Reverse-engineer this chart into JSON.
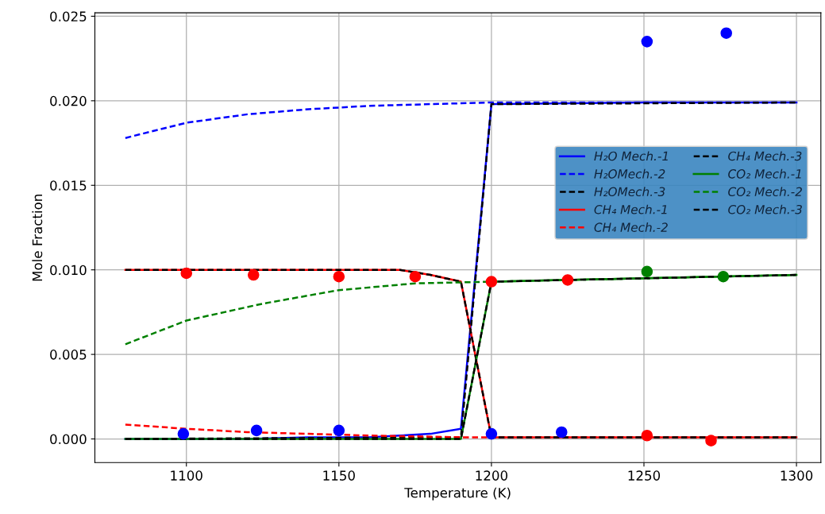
{
  "chart_data": {
    "type": "line",
    "xlabel": "Temperature (K)",
    "ylabel": "Mole Fraction",
    "xlim": [
      1070,
      1308
    ],
    "ylim": [
      -0.0014,
      0.0252
    ],
    "xticks": [
      1100,
      1150,
      1200,
      1250,
      1300
    ],
    "yticks": [
      {
        "value": 0,
        "label": "0.000"
      },
      {
        "value": 0.005,
        "label": "0.005"
      },
      {
        "value": 0.01,
        "label": "0.010"
      },
      {
        "value": 0.015,
        "label": "0.015"
      },
      {
        "value": 0.02,
        "label": "0.020"
      },
      {
        "value": 0.025,
        "label": "0.025"
      }
    ],
    "grid": true,
    "legend": "right",
    "series": [
      {
        "name": "H₂O Mech.-1",
        "color": "#0000ff",
        "line_style": "solid",
        "marker": "none",
        "x": [
          1080,
          1100,
          1120,
          1140,
          1160,
          1170,
          1180,
          1190,
          1200,
          1250,
          1300
        ],
        "values": [
          0,
          0,
          0,
          0.0001,
          0.0001,
          0.0002,
          0.0003,
          0.0006,
          0.0198,
          0.0199,
          0.0199
        ]
      },
      {
        "name": "H₂OMech.-2",
        "color": "#0000ff",
        "line_style": "dashed",
        "marker": "none",
        "x": [
          1080,
          1100,
          1120,
          1140,
          1160,
          1180,
          1200,
          1300
        ],
        "values": [
          0.0178,
          0.0187,
          0.0192,
          0.0195,
          0.0197,
          0.0198,
          0.0199,
          0.0199
        ]
      },
      {
        "name": "H₂OMech.-3",
        "color": "#000000",
        "line_style": "dashed",
        "marker": "none",
        "x": [
          1080,
          1190,
          1200,
          1300
        ],
        "values": [
          0,
          0.0001,
          0.0198,
          0.0199
        ]
      },
      {
        "name": "CH₄ Mech.-1",
        "color": "#ff0000",
        "line_style": "solid",
        "marker": "none",
        "x": [
          1080,
          1170,
          1180,
          1190,
          1200,
          1300
        ],
        "values": [
          0.01,
          0.01,
          0.0097,
          0.0093,
          0.0001,
          0.0001
        ]
      },
      {
        "name": "CH₄ Mech.-2",
        "color": "#ff0000",
        "line_style": "dashed",
        "marker": "none",
        "x": [
          1080,
          1100,
          1120,
          1140,
          1160,
          1190,
          1300
        ],
        "values": [
          0.00085,
          0.0006,
          0.0004,
          0.0003,
          0.0002,
          0.0001,
          0.0001
        ]
      },
      {
        "name": "CH₄ Mech.-3",
        "color": "#000000",
        "line_style": "dashed",
        "marker": "none",
        "x": [
          1080,
          1170,
          1180,
          1190,
          1200,
          1300
        ],
        "values": [
          0.01,
          0.01,
          0.0097,
          0.0093,
          0.0001,
          0.0001
        ]
      },
      {
        "name": "CO₂ Mech.-1",
        "color": "#008000",
        "line_style": "solid",
        "marker": "none",
        "x": [
          1080,
          1190,
          1200,
          1250,
          1300
        ],
        "values": [
          0,
          0,
          0.0093,
          0.0095,
          0.0097
        ]
      },
      {
        "name": "CO₂ Mech.-2",
        "color": "#008000",
        "line_style": "dashed",
        "marker": "none",
        "x": [
          1080,
          1100,
          1125,
          1150,
          1175,
          1200,
          1250,
          1300
        ],
        "values": [
          0.0056,
          0.007,
          0.008,
          0.0088,
          0.0092,
          0.0093,
          0.0095,
          0.0097
        ]
      },
      {
        "name": "CO₂ Mech.-3",
        "color": "#000000",
        "line_style": "dashed",
        "marker": "none",
        "x": [
          1080,
          1190,
          1200,
          1250,
          1300
        ],
        "values": [
          0,
          0,
          0.0093,
          0.0095,
          0.0097
        ]
      },
      {
        "type": "scatter",
        "color": "#0000ff",
        "marker": "circle",
        "x": [
          1099,
          1123,
          1150,
          1200,
          1223,
          1251,
          1277
        ],
        "values": [
          0.0003,
          0.0005,
          0.0005,
          0.0003,
          0.0004,
          0.0235,
          0.024
        ]
      },
      {
        "type": "scatter",
        "color": "#ff0000",
        "marker": "circle",
        "x": [
          1100,
          1122,
          1150,
          1175,
          1200,
          1225,
          1251,
          1272
        ],
        "values": [
          0.0098,
          0.0097,
          0.0096,
          0.0096,
          0.0093,
          0.0094,
          0.0002,
          -0.0001
        ]
      },
      {
        "type": "scatter",
        "color": "#008000",
        "marker": "circle",
        "x": [
          1251,
          1276
        ],
        "values": [
          0.0099,
          0.0096
        ]
      }
    ]
  }
}
